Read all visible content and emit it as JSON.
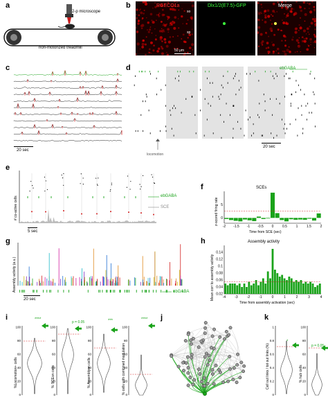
{
  "panels": {
    "a": {
      "label": "a",
      "microscope": "2-p microscope",
      "treadmill": "non-motorized treadmill"
    },
    "b": {
      "label": "b",
      "ch1": "RGECO1a",
      "ch2": "Dlx1/2(E7.5)-GFP",
      "ch3": "Merge",
      "so": "so",
      "sp": "sp",
      "scale": "50 μm"
    },
    "c": {
      "label": "c",
      "scale": "20 sec"
    },
    "d": {
      "label": "d",
      "ebgaba": "ebGABA",
      "locomotion": "locomotion",
      "scale": "20 sec"
    },
    "e": {
      "label": "e",
      "ylabel": "# co-active cells",
      "ebgaba": "ebGABA",
      "sce": "SCE",
      "scale": "5 sec"
    },
    "f": {
      "label": "f",
      "title": "SCEs",
      "ylabel": "z-scored firing rate",
      "xlabel": "Time from SCE (sec)",
      "yticks": [
        "5",
        "0"
      ],
      "xticks": [
        "-2",
        "-1.5",
        "-1",
        "-0.5",
        "0",
        "0.5",
        "1",
        "1.5",
        "2"
      ]
    },
    "g": {
      "label": "g",
      "ylabel": "Assembly activity (a.u.)",
      "ebgaba": "ebGABA",
      "scale": "20 sec"
    },
    "h": {
      "label": "h",
      "title": "Assembly activity",
      "ylabel": "Mean corr to assembly activity",
      "xlabel": "Time from assembly activation (sec)",
      "yticks": [
        "0.14",
        "0.12",
        "0.1",
        "0.08",
        "0.06",
        "0.04",
        "0.02"
      ],
      "xticks": [
        "-4",
        "-3",
        "-2",
        "-1",
        "0",
        "1",
        "2",
        "3",
        "4"
      ]
    },
    "i": {
      "label": "i",
      "ylabels": [
        "%Locomotion+ cells",
        "% SCEon cells",
        "% Assemblyon cells",
        "% cells with combined modulation"
      ],
      "stars": [
        "****",
        "****",
        "***",
        "****"
      ],
      "pval": "p = 0.05",
      "yticks": [
        "100",
        "80",
        "60",
        "40",
        "20",
        "0"
      ]
    },
    "j": {
      "label": "j"
    },
    "k": {
      "label": "k",
      "ylabels": [
        "Cell out links / tot out links (%)",
        "% hub cells"
      ],
      "stars": "*",
      "pval": "p = 0.05",
      "yticks1": [
        "1",
        "0.8",
        "0.6",
        "0.4",
        "0.2",
        "0"
      ],
      "yticks2": [
        "100",
        "80",
        "60",
        "40",
        "20",
        "0"
      ]
    }
  },
  "chart_data": [
    {
      "type": "bar",
      "panel": "f",
      "title": "SCEs",
      "xlabel": "Time from SCE (sec)",
      "ylabel": "z-scored firing rate",
      "ylim": [
        -2,
        10
      ],
      "x": [
        -2.0,
        -1.8,
        -1.6,
        -1.4,
        -1.2,
        -1.0,
        -0.8,
        -0.6,
        -0.4,
        -0.2,
        0.0,
        0.2,
        0.4,
        0.6,
        0.8,
        1.0,
        1.2,
        1.4,
        1.6,
        1.8,
        2.0
      ],
      "values": [
        -0.4,
        -0.8,
        -1.1,
        -1.3,
        -0.6,
        -0.9,
        -1.2,
        0.5,
        -0.4,
        -0.2,
        9.5,
        1.8,
        -0.8,
        -1.3,
        -0.5,
        -0.7,
        -0.6,
        -0.7,
        -0.3,
        -1.0,
        1.7
      ],
      "threshold": 2.5,
      "color": "#1aa31a"
    },
    {
      "type": "bar",
      "panel": "h",
      "title": "Assembly activity",
      "xlabel": "Time from assembly activation (sec)",
      "ylabel": "Mean corr to assembly activity",
      "ylim": [
        0.02,
        0.16
      ],
      "x": [
        -4.0,
        -3.8,
        -3.6,
        -3.4,
        -3.2,
        -3.0,
        -2.8,
        -2.6,
        -2.4,
        -2.2,
        -2.0,
        -1.8,
        -1.6,
        -1.4,
        -1.2,
        -1.0,
        -0.8,
        -0.6,
        -0.4,
        -0.2,
        0.0,
        0.2,
        0.4,
        0.6,
        0.8,
        1.0,
        1.2,
        1.4,
        1.6,
        1.8,
        2.0,
        2.2,
        2.4,
        2.6,
        2.8,
        3.0,
        3.2,
        3.4,
        3.6,
        3.8,
        4.0
      ],
      "values": [
        0.05,
        0.045,
        0.05,
        0.05,
        0.05,
        0.045,
        0.05,
        0.04,
        0.05,
        0.04,
        0.055,
        0.045,
        0.05,
        0.06,
        0.045,
        0.055,
        0.065,
        0.05,
        0.085,
        0.065,
        0.15,
        0.09,
        0.08,
        0.07,
        0.075,
        0.065,
        0.06,
        0.07,
        0.065,
        0.055,
        0.06,
        0.055,
        0.06,
        0.05,
        0.055,
        0.05,
        0.055,
        0.05,
        0.04,
        0.045,
        0.05
      ],
      "threshold": 0.055,
      "color": "#1aa31a"
    }
  ]
}
